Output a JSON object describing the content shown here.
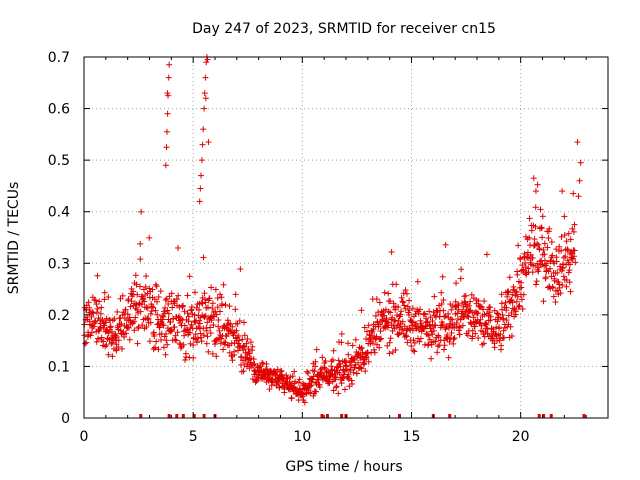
{
  "chart_data": {
    "type": "scatter",
    "title": "Day 247 of 2023, SRMTID for receiver cn15",
    "xlabel": "GPS time / hours",
    "ylabel": "SRMTID / TECUs",
    "xlim": [
      0,
      24
    ],
    "ylim": [
      0,
      0.7
    ],
    "xticks": [
      0,
      5,
      10,
      15,
      20
    ],
    "xtick_labels": [
      "0",
      "5",
      "10",
      "15",
      "20"
    ],
    "yticks": [
      0,
      0.1,
      0.2,
      0.3,
      0.4,
      0.5,
      0.6,
      0.7
    ],
    "ytick_labels": [
      "0",
      "0.1",
      "0.2",
      "0.3",
      "0.4",
      "0.5",
      "0.6",
      "0.7"
    ],
    "grid": true,
    "marker": "+",
    "color": "#e00000",
    "rug_x_hours": [
      2.6,
      3.9,
      4.25,
      4.55,
      5.05,
      5.5,
      6.0,
      10.9,
      11.15,
      11.8,
      12.0,
      14.45,
      16.0,
      16.75,
      20.85,
      21.05,
      21.4,
      22.9
    ],
    "series_profile": {
      "name": "cn15",
      "x": [
        0,
        0.5,
        1,
        1.5,
        2,
        2.5,
        3,
        3.5,
        4,
        4.5,
        5,
        5.5,
        6,
        6.5,
        7,
        7.5,
        8,
        8.5,
        9,
        9.5,
        10,
        10.5,
        11,
        11.5,
        12,
        12.5,
        13,
        13.5,
        14,
        14.5,
        15,
        15.5,
        16,
        16.5,
        17,
        17.5,
        18,
        18.5,
        19,
        19.5,
        20,
        20.5,
        21,
        21.5,
        22,
        22.5
      ],
      "y": [
        0.18,
        0.19,
        0.17,
        0.16,
        0.2,
        0.22,
        0.2,
        0.19,
        0.18,
        0.17,
        0.18,
        0.2,
        0.19,
        0.17,
        0.15,
        0.12,
        0.09,
        0.08,
        0.07,
        0.06,
        0.05,
        0.07,
        0.09,
        0.08,
        0.09,
        0.11,
        0.14,
        0.17,
        0.19,
        0.2,
        0.18,
        0.17,
        0.19,
        0.18,
        0.19,
        0.2,
        0.19,
        0.18,
        0.17,
        0.21,
        0.27,
        0.31,
        0.33,
        0.29,
        0.31,
        0.32
      ],
      "spread": [
        0.06,
        0.05,
        0.05,
        0.05,
        0.06,
        0.07,
        0.06,
        0.06,
        0.06,
        0.06,
        0.07,
        0.07,
        0.06,
        0.06,
        0.05,
        0.04,
        0.03,
        0.03,
        0.02,
        0.02,
        0.02,
        0.03,
        0.03,
        0.03,
        0.03,
        0.04,
        0.05,
        0.06,
        0.06,
        0.06,
        0.06,
        0.05,
        0.06,
        0.06,
        0.06,
        0.06,
        0.06,
        0.06,
        0.05,
        0.06,
        0.07,
        0.08,
        0.08,
        0.07,
        0.07,
        0.08
      ]
    },
    "outlier_points": [
      {
        "x": 3.75,
        "y": 0.49
      },
      {
        "x": 3.78,
        "y": 0.525
      },
      {
        "x": 3.8,
        "y": 0.555
      },
      {
        "x": 3.83,
        "y": 0.59
      },
      {
        "x": 3.85,
        "y": 0.625
      },
      {
        "x": 3.88,
        "y": 0.66
      },
      {
        "x": 3.9,
        "y": 0.685
      },
      {
        "x": 3.82,
        "y": 0.63
      },
      {
        "x": 5.3,
        "y": 0.42
      },
      {
        "x": 5.33,
        "y": 0.445
      },
      {
        "x": 5.36,
        "y": 0.47
      },
      {
        "x": 5.4,
        "y": 0.5
      },
      {
        "x": 5.43,
        "y": 0.53
      },
      {
        "x": 5.46,
        "y": 0.56
      },
      {
        "x": 5.5,
        "y": 0.6
      },
      {
        "x": 5.53,
        "y": 0.63
      },
      {
        "x": 5.56,
        "y": 0.66
      },
      {
        "x": 5.6,
        "y": 0.69
      },
      {
        "x": 5.63,
        "y": 0.7
      },
      {
        "x": 5.7,
        "y": 0.535
      },
      {
        "x": 5.58,
        "y": 0.62
      },
      {
        "x": 5.66,
        "y": 0.695
      },
      {
        "x": 22.6,
        "y": 0.535
      },
      {
        "x": 22.75,
        "y": 0.495
      },
      {
        "x": 22.7,
        "y": 0.46
      },
      {
        "x": 22.65,
        "y": 0.43
      },
      {
        "x": 20.6,
        "y": 0.465
      },
      {
        "x": 20.7,
        "y": 0.44
      },
      {
        "x": 21.9,
        "y": 0.44
      }
    ]
  }
}
